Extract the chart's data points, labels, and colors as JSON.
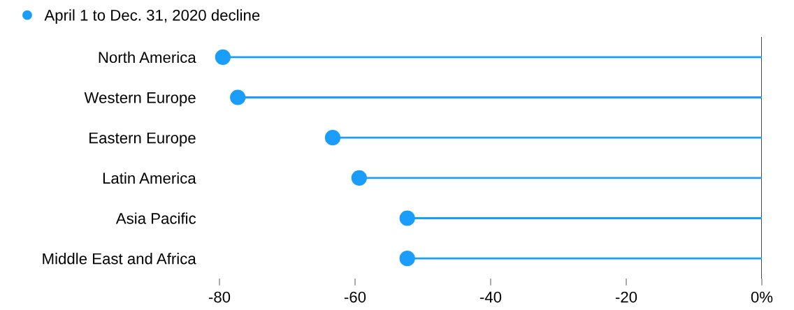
{
  "chart_data": {
    "type": "lollipop",
    "orientation": "horizontal",
    "categories": [
      "North America",
      "Western Europe",
      "Eastern Europe",
      "Latin America",
      "Asia Pacific",
      "Middle East and Africa"
    ],
    "series": [
      {
        "name": "April 1 to Dec. 31, 2020 decline",
        "color": "#1a9dfb",
        "values": [
          -79.5,
          -77.3,
          -63.3,
          -59.4,
          -52.3,
          -52.3
        ]
      }
    ],
    "xlim": [
      -80,
      0
    ],
    "xticks": [
      -80,
      -60,
      -40,
      -20,
      {
        "value": 0,
        "label": "0%"
      }
    ],
    "legend": "top left",
    "grid": false,
    "marker": "circle"
  }
}
